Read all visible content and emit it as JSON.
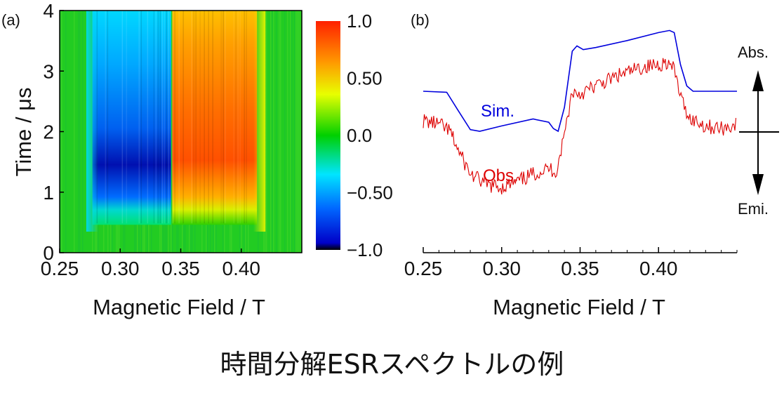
{
  "caption": "時間分解ESRスペクトルの例",
  "chart_data": [
    {
      "type": "heatmap",
      "panel_label": "(a)",
      "xlabel": "Magnetic Field / T",
      "ylabel": "Time / μs",
      "xlim": [
        0.25,
        0.45
      ],
      "ylim": [
        0,
        4
      ],
      "xticks": [
        "0.25",
        "0.30",
        "0.35",
        "0.40"
      ],
      "yticks": [
        "0",
        "1",
        "2",
        "3",
        "4"
      ],
      "xtick_values": [
        0.25,
        0.3,
        0.35,
        0.4
      ],
      "ytick_values": [
        0,
        1,
        2,
        3,
        4
      ],
      "colorbar": {
        "range": [
          -1.0,
          1.0
        ],
        "ticks": [
          "1.0",
          "0.50",
          "0.0",
          "−0.50",
          "−1.0"
        ],
        "tick_values": [
          1.0,
          0.5,
          0.0,
          -0.5,
          -1.0
        ],
        "colormap": [
          "#000000",
          "#0000c8",
          "#0066ff",
          "#00e5ff",
          "#00d000",
          "#e8ff00",
          "#ff9900",
          "#ff2000"
        ]
      },
      "features": [
        {
          "field_range": [
            0.277,
            0.342
          ],
          "time_range": [
            0.6,
            4.0
          ],
          "peak_time": 1.4,
          "peak_value": -1.0
        },
        {
          "field_range": [
            0.343,
            0.413
          ],
          "time_range": [
            0.6,
            4.0
          ],
          "peak_time": 1.2,
          "peak_value": 0.85
        }
      ]
    },
    {
      "type": "line",
      "panel_label": "(b)",
      "xlabel": "Magnetic Field / T",
      "xlim": [
        0.25,
        0.45
      ],
      "xticks": [
        "0.25",
        "0.30",
        "0.35",
        "0.40"
      ],
      "xtick_values": [
        0.25,
        0.3,
        0.35,
        0.4
      ],
      "series": [
        {
          "name": "Sim.",
          "color": "#0000dd",
          "x": [
            0.25,
            0.265,
            0.272,
            0.28,
            0.286,
            0.3,
            0.32,
            0.33,
            0.333,
            0.336,
            0.34,
            0.345,
            0.348,
            0.352,
            0.36,
            0.38,
            0.4,
            0.407,
            0.41,
            0.414,
            0.418,
            0.422,
            0.45
          ],
          "y": [
            0.0,
            -0.02,
            -0.35,
            -0.72,
            -0.75,
            -0.65,
            -0.52,
            -0.58,
            -0.7,
            -0.75,
            -0.3,
            0.75,
            0.85,
            0.78,
            0.82,
            0.95,
            1.1,
            1.14,
            1.1,
            0.5,
            0.1,
            0.0,
            0.0
          ]
        },
        {
          "name": "Obs.",
          "color": "#dd0000",
          "x": [
            0.25,
            0.26,
            0.267,
            0.273,
            0.28,
            0.29,
            0.3,
            0.31,
            0.32,
            0.33,
            0.335,
            0.34,
            0.345,
            0.35,
            0.36,
            0.375,
            0.39,
            0.4,
            0.405,
            0.41,
            0.415,
            0.42,
            0.43,
            0.44,
            0.45
          ],
          "y": [
            -0.55,
            -0.62,
            -0.75,
            -1.15,
            -1.55,
            -1.75,
            -1.8,
            -1.7,
            -1.55,
            -1.45,
            -1.5,
            -0.8,
            0.0,
            -0.05,
            0.1,
            0.3,
            0.45,
            0.5,
            0.55,
            0.4,
            -0.2,
            -0.5,
            -0.65,
            -0.7,
            -0.62
          ]
        }
      ],
      "annotations": {
        "sim_label": "Sim.",
        "obs_label": "Obs.",
        "abs_label": "Abs.",
        "emi_label": "Emi."
      }
    }
  ]
}
